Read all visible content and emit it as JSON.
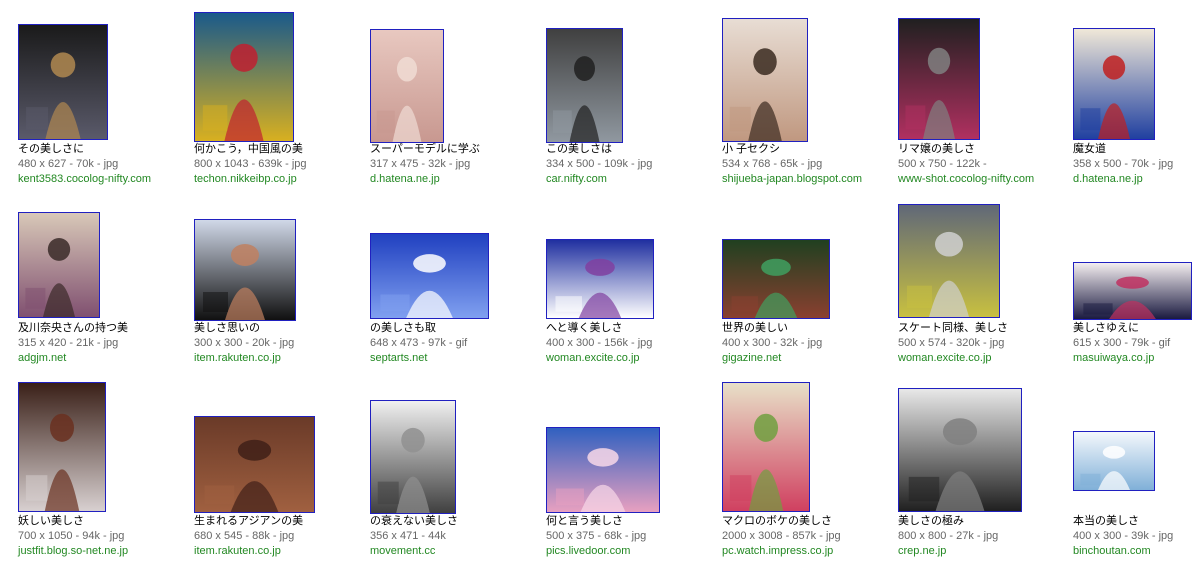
{
  "results": [
    [
      {
        "title": "その美しさに",
        "meta": "480 x 627 - 70k - jpg",
        "site": "kent3583.cocolog-nifty.com",
        "icon": "figurine-image",
        "c1": "#1a1a1a",
        "c2": "#5a5a6a",
        "c3": "#b08850"
      },
      {
        "title": "何かこう，中国風の美",
        "meta": "800 x 1043 - 639k - jpg",
        "site": "techon.nikkeibp.co.jp",
        "icon": "woman-yellow-dress-image",
        "c1": "#1a5a8a",
        "c2": "#d8b020",
        "c3": "#c02030"
      },
      {
        "title": "スーパーモデルに学ぶ",
        "meta": "317 x 475 - 32k - jpg",
        "site": "d.hatena.ne.jp",
        "icon": "book-cover-image",
        "c1": "#e8c8c0",
        "c2": "#c89890",
        "c3": "#f0dcd4"
      },
      {
        "title": "この美しさは",
        "meta": "334 x 500 - 109k - jpg",
        "site": "car.nifty.com",
        "icon": "woman-car-image",
        "c1": "#404040",
        "c2": "#9098a0",
        "c3": "#202020"
      },
      {
        "title": "小 子セクシ",
        "meta": "534 x 768 - 65k - jpg",
        "site": "shijueba-japan.blogspot.com",
        "icon": "woman-portrait-image",
        "c1": "#e8ddd4",
        "c2": "#c09880",
        "c3": "#3a2a20"
      },
      {
        "title": "リマ嬢の美しさ",
        "meta": "500 x 750 - 122k - ",
        "site": "www-shot.cocolog-nifty.com",
        "icon": "stage-performer-image",
        "c1": "#202020",
        "c2": "#b03060",
        "c3": "#808080"
      },
      {
        "title": "魔女道",
        "meta": "358 x 500 - 70k - jpg",
        "site": "d.hatena.ne.jp",
        "icon": "anime-cover-image",
        "c1": "#f0e8d8",
        "c2": "#2040a0",
        "c3": "#c02020"
      }
    ],
    [
      {
        "title": "及川奈央さんの持つ美",
        "meta": "315 x 420 - 21k - jpg",
        "site": "adgjm.net",
        "icon": "woman-lingerie-image",
        "c1": "#d8c8b8",
        "c2": "#805070",
        "c3": "#3a2a28"
      },
      {
        "title": "美しさ思いの",
        "meta": "300 x 300 - 20k - jpg",
        "site": "item.rakuten.co.jp",
        "icon": "mascara-ad-image",
        "c1": "#d0d8e8",
        "c2": "#101010",
        "c3": "#c08060"
      },
      {
        "title": "の美しさも取",
        "meta": "648 x 473 - 97k - gif",
        "site": "septarts.net",
        "icon": "space-angel-image",
        "c1": "#2040c0",
        "c2": "#80a0f0",
        "c3": "#ffffff"
      },
      {
        "title": "へと導く美しさ",
        "meta": "400 x 300 - 156k - jpg",
        "site": "woman.excite.co.jp",
        "icon": "gymnasts-pola-image",
        "c1": "#2030a0",
        "c2": "#ffffff",
        "c3": "#8040a0"
      },
      {
        "title": "世界の美しい",
        "meta": "400 x 300 - 32k - jpg",
        "site": "gigazine.net",
        "icon": "forest-image",
        "c1": "#204020",
        "c2": "#8a4030",
        "c3": "#40a060"
      },
      {
        "title": "スケート同様、美しさ",
        "meta": "500 x 574 - 320k - jpg",
        "site": "woman.excite.co.jp",
        "icon": "gymnastics-team-image",
        "c1": "#606878",
        "c2": "#c8c040",
        "c3": "#d0d0d0"
      },
      {
        "title": "美しさゆえに",
        "meta": "615 x 300 - 79k - gif",
        "site": "masuiwaya.co.jp",
        "icon": "japanese-title-image",
        "c1": "#f4eef0",
        "c2": "#1a1a40",
        "c3": "#c03060"
      }
    ],
    [
      {
        "title": "妖しい美しさ",
        "meta": "700 x 1050 - 94k - jpg",
        "site": "justfit.blog.so-net.ne.jp",
        "icon": "woman-doorway-image",
        "c1": "#3a2018",
        "c2": "#d8d0d0",
        "c3": "#6a3020"
      },
      {
        "title": "生まれるアジアンの美",
        "meta": "680 x 545 - 88k - jpg",
        "site": "item.rakuten.co.jp",
        "icon": "bamboo-blind-image",
        "c1": "#6a3a28",
        "c2": "#a06040",
        "c3": "#402018"
      },
      {
        "title": "の衰えない美しさ",
        "meta": "356 x 471 - 44k",
        "site": "movement.cc",
        "icon": "sculpture-image",
        "c1": "#f0f0f0",
        "c2": "#404040",
        "c3": "#909090"
      },
      {
        "title": "何と言う美しさ",
        "meta": "500 x 375 - 68k - jpg",
        "site": "pics.livedoor.com",
        "icon": "cherry-blossom-image",
        "c1": "#3060c0",
        "c2": "#e8a0c0",
        "c3": "#f8d8e8"
      },
      {
        "title": "マクロのボケの美しさ",
        "meta": "2000 x 3008 - 857k - jpg",
        "site": "pc.watch.impress.co.jp",
        "icon": "flower-vase-image",
        "c1": "#e8e0c8",
        "c2": "#d04060",
        "c3": "#70a040"
      },
      {
        "title": "美しさの極み",
        "meta": "800 x 800 - 27k - jpg",
        "site": "crep.ne.jp",
        "icon": "wing-image",
        "c1": "#e8e8e8",
        "c2": "#202020",
        "c3": "#808080"
      },
      {
        "title": "本当の美しさ",
        "meta": "400 x 300 - 39k - jpg",
        "site": "binchoutan.com",
        "icon": "water-splash-image",
        "c1": "#f4f8fc",
        "c2": "#80b0d8",
        "c3": "#ffffff"
      }
    ]
  ]
}
